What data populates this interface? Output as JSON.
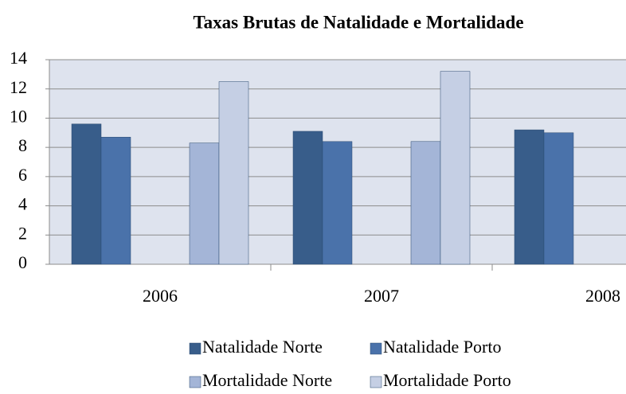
{
  "chart_data": {
    "type": "bar",
    "title": "Taxas Brutas de Natalidade e Mortalidade",
    "categories": [
      "2006",
      "2007",
      "2008"
    ],
    "series": [
      {
        "name": "Natalidade Norte",
        "color": "#385d8a",
        "values": [
          9.6,
          9.1,
          9.2
        ]
      },
      {
        "name": "Natalidade Porto",
        "color": "#4a72aa",
        "values": [
          8.7,
          8.4,
          9.0
        ]
      },
      {
        "name": "Mortalidade Norte",
        "color": "#a4b5d7",
        "values": [
          8.3,
          8.4,
          null
        ]
      },
      {
        "name": "Mortalidade Porto",
        "color": "#c5cfe4",
        "values": [
          12.5,
          13.2,
          null
        ]
      }
    ],
    "ylim": [
      0,
      14
    ],
    "yticks": [
      0,
      2,
      4,
      6,
      8,
      10,
      12,
      14
    ],
    "grid": true,
    "legend": "bottom"
  }
}
